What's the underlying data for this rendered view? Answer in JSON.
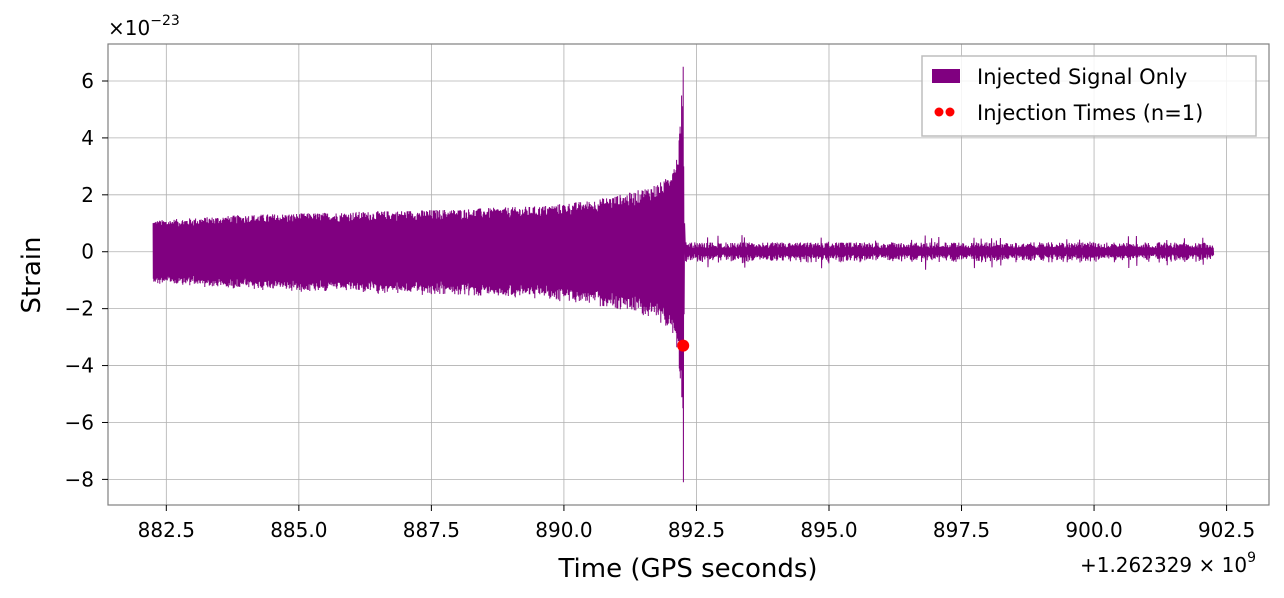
{
  "chart_data": {
    "type": "line",
    "xlabel": "Time (GPS seconds)",
    "ylabel": "Strain",
    "x_offset_label": "+1.262329 × 10",
    "x_offset_exponent": "9",
    "y_scale_label": "×10",
    "y_scale_exponent": "−23",
    "xlim": [
      881.4,
      903.3
    ],
    "ylim": [
      -8.9,
      7.3
    ],
    "x_ticks": [
      {
        "value": 882.5,
        "label": "882.5"
      },
      {
        "value": 885.0,
        "label": "885.0"
      },
      {
        "value": 887.5,
        "label": "887.5"
      },
      {
        "value": 890.0,
        "label": "890.0"
      },
      {
        "value": 892.5,
        "label": "892.5"
      },
      {
        "value": 895.0,
        "label": "895.0"
      },
      {
        "value": 897.5,
        "label": "897.5"
      },
      {
        "value": 900.0,
        "label": "900.0"
      },
      {
        "value": 902.5,
        "label": "902.5"
      }
    ],
    "y_ticks": [
      {
        "value": 6,
        "label": "6"
      },
      {
        "value": 4,
        "label": "4"
      },
      {
        "value": 2,
        "label": "2"
      },
      {
        "value": 0,
        "label": "0"
      },
      {
        "value": -2,
        "label": "−2"
      },
      {
        "value": -4,
        "label": "−4"
      },
      {
        "value": -6,
        "label": "−6"
      },
      {
        "value": -8,
        "label": "−8"
      }
    ],
    "grid": true,
    "legend_position": "top-right",
    "series": [
      {
        "name": "Injected Signal Only",
        "kind": "line",
        "color": "#800080",
        "x_start": 882.25,
        "x_end": 902.25,
        "merger_time": 892.25,
        "envelope": [
          {
            "x": 882.25,
            "y": 1.1
          },
          {
            "x": 884.0,
            "y": 1.3
          },
          {
            "x": 886.0,
            "y": 1.4
          },
          {
            "x": 888.0,
            "y": 1.5
          },
          {
            "x": 889.5,
            "y": 1.6
          },
          {
            "x": 890.5,
            "y": 1.8
          },
          {
            "x": 891.3,
            "y": 2.1
          },
          {
            "x": 891.9,
            "y": 2.5
          },
          {
            "x": 892.15,
            "y": 3.5
          },
          {
            "x": 892.25,
            "y": 6.5
          }
        ],
        "peak_max": 6.5,
        "peak_min": -8.1,
        "ringdown_amplitude": 0.6
      },
      {
        "name": "Injection Times (n=1)",
        "kind": "scatter",
        "color": "#ff0000",
        "points": [
          {
            "x": 892.25,
            "y": -3.3
          }
        ]
      }
    ]
  }
}
